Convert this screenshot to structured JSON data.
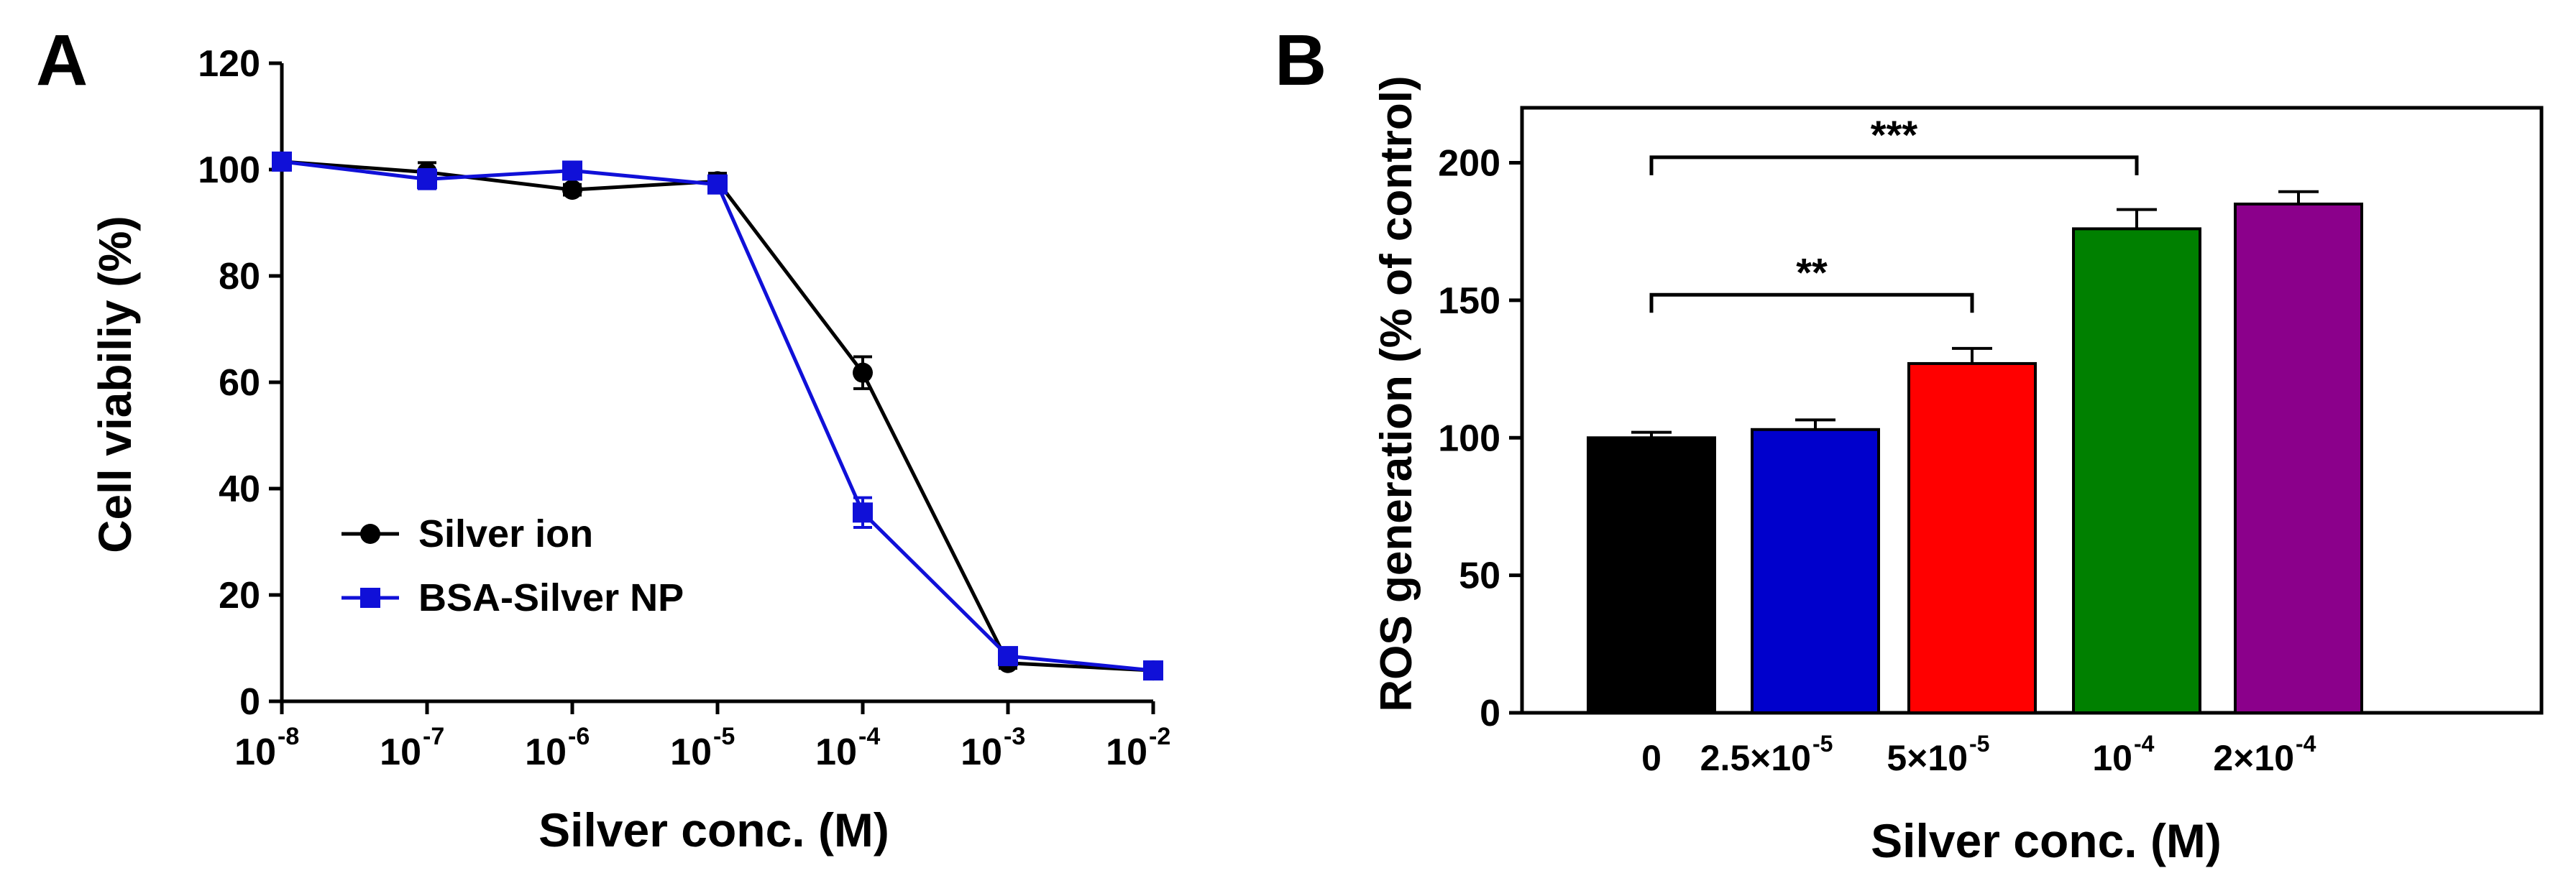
{
  "chart_data": [
    {
      "panel_label": "A",
      "type": "line",
      "xscale": "log",
      "x_exponents": [
        -8,
        -7,
        -6,
        -5,
        -4,
        -3,
        -2
      ],
      "x_tick_base": "10",
      "x_tick_exponents": [
        "-8",
        "-7",
        "-6",
        "-5",
        "-4",
        "-3",
        "-2"
      ],
      "xlabel": "Silver conc. (M)",
      "ylabel": "Cell viabiliy (%)",
      "ylim": [
        0,
        120
      ],
      "yticks": [
        0,
        20,
        40,
        60,
        80,
        100,
        120
      ],
      "legend_position": "bottom-left",
      "series": [
        {
          "name": "Silver ion",
          "color": "#000000",
          "marker": "circle",
          "values": [
            101.5,
            99.5,
            96.2,
            97.8,
            61.8,
            7.2,
            5.8
          ],
          "errors": [
            1.0,
            1.8,
            1.0,
            1.5,
            3.0,
            1.0,
            1.0
          ]
        },
        {
          "name": "BSA-Silver NP",
          "color": "#1010d8",
          "marker": "square",
          "values": [
            101.5,
            98.2,
            99.8,
            97.2,
            35.5,
            8.5,
            5.8
          ],
          "errors": [
            1.0,
            1.8,
            1.0,
            1.5,
            2.8,
            1.5,
            1.0
          ]
        }
      ]
    },
    {
      "panel_label": "B",
      "type": "bar",
      "categories": [
        {
          "base": "0",
          "exp": ""
        },
        {
          "base": "2.5×10",
          "exp": "-5"
        },
        {
          "base": "5×10",
          "exp": "-5"
        },
        {
          "base": "10",
          "exp": "-4"
        },
        {
          "base": "2×10",
          "exp": "-4"
        }
      ],
      "values": [
        100,
        103,
        127,
        176,
        185
      ],
      "errors": [
        2,
        3.5,
        5.5,
        7,
        4.5
      ],
      "colors": [
        "#000000",
        "#0000cc",
        "#ff0000",
        "#008000",
        "#8b008b"
      ],
      "xlabel": "Silver conc. (M)",
      "ylabel": "ROS generation (% of control)",
      "ylim": [
        0,
        220
      ],
      "yticks": [
        0,
        50,
        100,
        150,
        200
      ],
      "significance": [
        {
          "from": 0,
          "to": 3,
          "label": "***",
          "level": 202
        },
        {
          "from": 0,
          "to": 2,
          "label": "**",
          "level": 152
        }
      ]
    }
  ]
}
